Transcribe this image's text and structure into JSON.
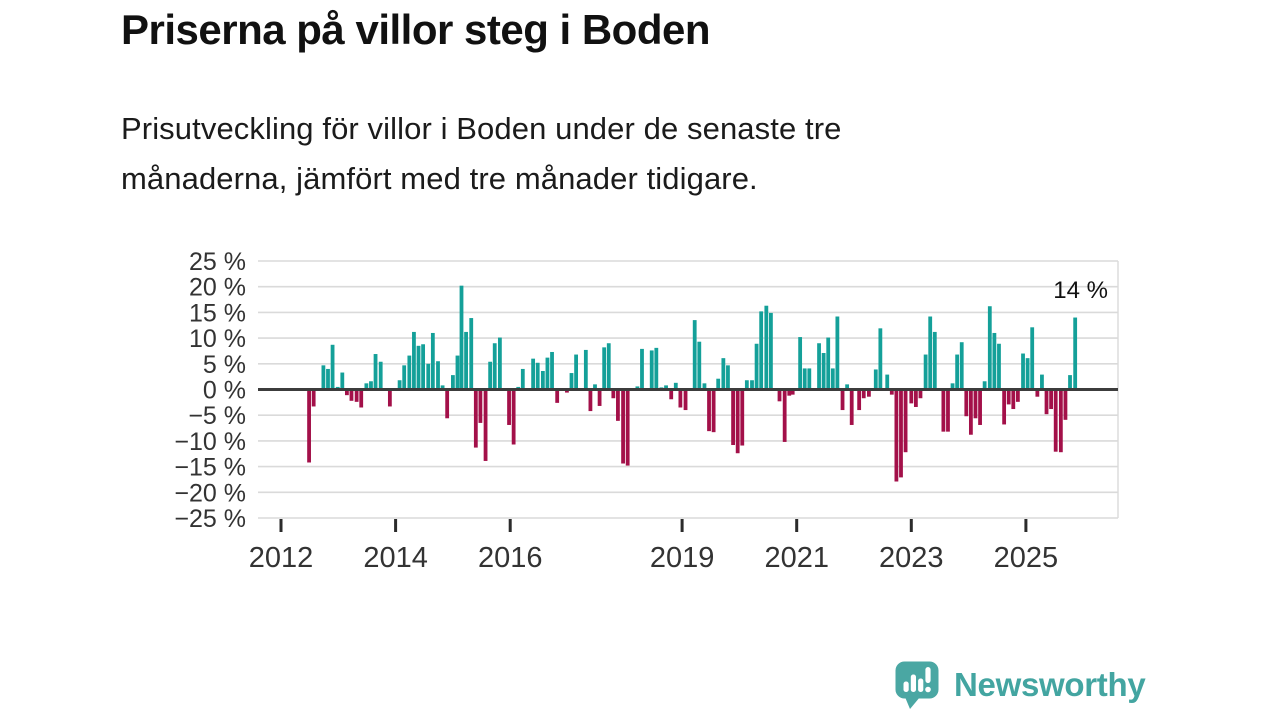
{
  "title": "Priserna på villor steg i Boden",
  "subtitle_lines": [
    "Prisutveckling för villor i Boden under de senaste tre",
    "månaderna, jämfört med tre månader tidigare."
  ],
  "branding": {
    "name": "Newsworthy",
    "logo_icon": "bar-chart-speech-bubble-icon"
  },
  "colors": {
    "positive_bar": "#14a099",
    "negative_bar": "#a31049",
    "gridline": "#dadada",
    "zero_line": "#3c3c3c",
    "axis_text": "#333333",
    "title_text": "#111111",
    "annotation_text": "#111111",
    "brand_teal": "#43a5a1",
    "background": "#ffffff"
  },
  "chart_data": {
    "type": "bar",
    "title": "",
    "xlabel": "",
    "ylabel": "",
    "unit": "%",
    "grid": true,
    "legend": "none",
    "ylim": [
      -25,
      25
    ],
    "ytick_step": 5,
    "ytick_labels": [
      "25 %",
      "20 %",
      "15 %",
      "10 %",
      "5 %",
      "0 %",
      "−5 %",
      "−10 %",
      "−15 %",
      "−20 %",
      "−25 %"
    ],
    "xtick_years": [
      2012,
      2014,
      2016,
      2019,
      2021,
      2023,
      2025
    ],
    "x_range_years": [
      2011.6,
      2026.6
    ],
    "annotation": "14 %",
    "points": [
      [
        2012.49,
        -14.2
      ],
      [
        2012.57,
        -3.3
      ],
      [
        2012.74,
        4.7
      ],
      [
        2012.82,
        4.0
      ],
      [
        2012.9,
        8.7
      ],
      [
        2012.99,
        0.5
      ],
      [
        2013.07,
        3.3
      ],
      [
        2013.15,
        -1.1
      ],
      [
        2013.23,
        -2.2
      ],
      [
        2013.32,
        -2.4
      ],
      [
        2013.4,
        -3.5
      ],
      [
        2013.49,
        1.2
      ],
      [
        2013.57,
        1.6
      ],
      [
        2013.65,
        6.9
      ],
      [
        2013.74,
        5.4
      ],
      [
        2013.9,
        -3.3
      ],
      [
        2014.07,
        1.8
      ],
      [
        2014.15,
        4.7
      ],
      [
        2014.24,
        6.6
      ],
      [
        2014.32,
        11.2
      ],
      [
        2014.4,
        8.5
      ],
      [
        2014.48,
        8.8
      ],
      [
        2014.57,
        5.0
      ],
      [
        2014.65,
        11.0
      ],
      [
        2014.74,
        5.5
      ],
      [
        2014.82,
        0.8
      ],
      [
        2014.9,
        -5.6
      ],
      [
        2015.0,
        2.8
      ],
      [
        2015.08,
        6.6
      ],
      [
        2015.15,
        20.2
      ],
      [
        2015.23,
        11.2
      ],
      [
        2015.32,
        13.9
      ],
      [
        2015.4,
        -11.3
      ],
      [
        2015.48,
        -6.5
      ],
      [
        2015.57,
        -13.9
      ],
      [
        2015.65,
        5.4
      ],
      [
        2015.73,
        9.0
      ],
      [
        2015.82,
        10.1
      ],
      [
        2015.98,
        -6.9
      ],
      [
        2016.06,
        -10.7
      ],
      [
        2016.14,
        0.5
      ],
      [
        2016.22,
        4.0
      ],
      [
        2016.4,
        6.0
      ],
      [
        2016.48,
        5.2
      ],
      [
        2016.57,
        3.6
      ],
      [
        2016.65,
        6.2
      ],
      [
        2016.73,
        7.3
      ],
      [
        2016.82,
        -2.6
      ],
      [
        2016.99,
        -0.6
      ],
      [
        2017.07,
        3.2
      ],
      [
        2017.15,
        6.8
      ],
      [
        2017.32,
        7.7
      ],
      [
        2017.4,
        -4.2
      ],
      [
        2017.48,
        1.0
      ],
      [
        2017.56,
        -3.2
      ],
      [
        2017.64,
        8.2
      ],
      [
        2017.72,
        9.0
      ],
      [
        2017.8,
        -1.7
      ],
      [
        2017.88,
        -6.1
      ],
      [
        2017.97,
        -14.4
      ],
      [
        2018.05,
        -14.8
      ],
      [
        2018.22,
        0.6
      ],
      [
        2018.3,
        7.9
      ],
      [
        2018.47,
        7.6
      ],
      [
        2018.55,
        8.1
      ],
      [
        2018.64,
        0.4
      ],
      [
        2018.72,
        0.8
      ],
      [
        2018.81,
        -1.9
      ],
      [
        2018.89,
        1.3
      ],
      [
        2018.97,
        -3.5
      ],
      [
        2019.06,
        -4.0
      ],
      [
        2019.22,
        13.5
      ],
      [
        2019.3,
        9.3
      ],
      [
        2019.39,
        1.2
      ],
      [
        2019.47,
        -8.1
      ],
      [
        2019.55,
        -8.3
      ],
      [
        2019.63,
        2.1
      ],
      [
        2019.72,
        6.1
      ],
      [
        2019.8,
        4.7
      ],
      [
        2019.89,
        -10.8
      ],
      [
        2019.97,
        -12.4
      ],
      [
        2020.05,
        -10.9
      ],
      [
        2020.13,
        1.8
      ],
      [
        2020.22,
        1.8
      ],
      [
        2020.3,
        8.9
      ],
      [
        2020.38,
        15.2
      ],
      [
        2020.47,
        16.3
      ],
      [
        2020.55,
        14.9
      ],
      [
        2020.7,
        -2.3
      ],
      [
        2020.79,
        -10.2
      ],
      [
        2020.87,
        -1.2
      ],
      [
        2020.93,
        -1.0
      ],
      [
        2021.06,
        10.2
      ],
      [
        2021.14,
        4.1
      ],
      [
        2021.22,
        4.1
      ],
      [
        2021.39,
        9.0
      ],
      [
        2021.47,
        7.1
      ],
      [
        2021.55,
        10.1
      ],
      [
        2021.63,
        4.1
      ],
      [
        2021.71,
        14.2
      ],
      [
        2021.8,
        -4.0
      ],
      [
        2021.88,
        1.0
      ],
      [
        2021.96,
        -6.9
      ],
      [
        2022.09,
        -4.0
      ],
      [
        2022.17,
        -1.7
      ],
      [
        2022.26,
        -1.4
      ],
      [
        2022.38,
        3.9
      ],
      [
        2022.46,
        11.9
      ],
      [
        2022.58,
        2.9
      ],
      [
        2022.66,
        -1.0
      ],
      [
        2022.74,
        -17.9
      ],
      [
        2022.82,
        -17.1
      ],
      [
        2022.9,
        -12.2
      ],
      [
        2023.0,
        -2.7
      ],
      [
        2023.08,
        -3.4
      ],
      [
        2023.16,
        -1.7
      ],
      [
        2023.25,
        6.8
      ],
      [
        2023.33,
        14.2
      ],
      [
        2023.41,
        11.2
      ],
      [
        2023.56,
        -8.2
      ],
      [
        2023.64,
        -8.2
      ],
      [
        2023.72,
        1.2
      ],
      [
        2023.8,
        6.8
      ],
      [
        2023.88,
        9.2
      ],
      [
        2023.96,
        -5.2
      ],
      [
        2024.04,
        -8.8
      ],
      [
        2024.12,
        -5.6
      ],
      [
        2024.2,
        -6.9
      ],
      [
        2024.28,
        1.6
      ],
      [
        2024.37,
        16.2
      ],
      [
        2024.45,
        11.0
      ],
      [
        2024.53,
        8.9
      ],
      [
        2024.62,
        -6.8
      ],
      [
        2024.7,
        -2.9
      ],
      [
        2024.78,
        -3.8
      ],
      [
        2024.86,
        -2.4
      ],
      [
        2024.95,
        7.0
      ],
      [
        2025.03,
        6.1
      ],
      [
        2025.11,
        12.1
      ],
      [
        2025.2,
        -1.4
      ],
      [
        2025.28,
        2.9
      ],
      [
        2025.36,
        -4.8
      ],
      [
        2025.44,
        -3.8
      ],
      [
        2025.52,
        -12.1
      ],
      [
        2025.61,
        -12.2
      ],
      [
        2025.69,
        -5.9
      ],
      [
        2025.77,
        2.8
      ],
      [
        2025.86,
        14.0
      ]
    ]
  }
}
